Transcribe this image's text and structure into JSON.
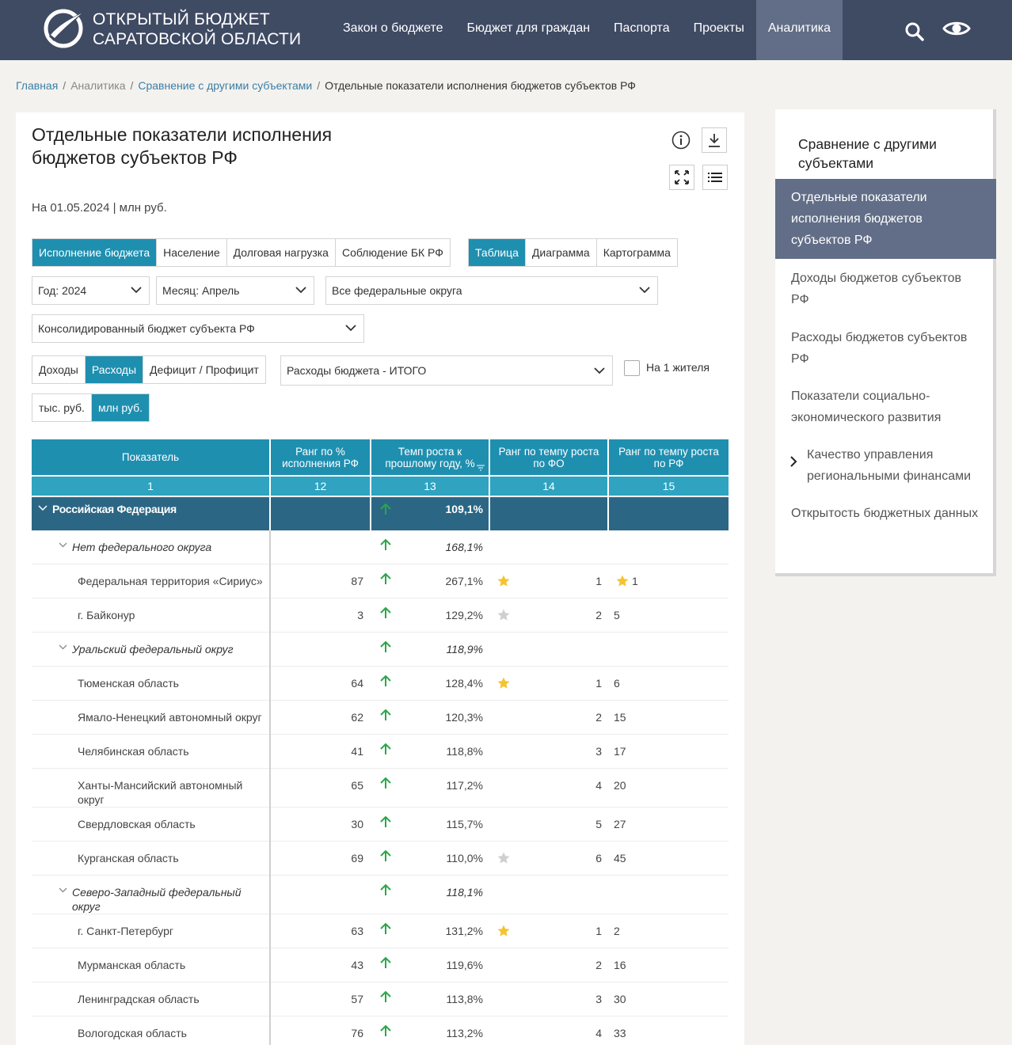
{
  "header": {
    "brand_line1": "ОТКРЫТЫЙ БЮДЖЕТ",
    "brand_line2": "САРАТОВСКОЙ ОБЛАСТИ",
    "nav": [
      "Закон о бюджете",
      "Бюджет для граждан",
      "Паспорта",
      "Проекты",
      "Аналитика"
    ],
    "active_nav": "Аналитика"
  },
  "breadcrumb": {
    "home": "Главная",
    "analytics": "Аналитика",
    "compare": "Сравнение с другими субъектами",
    "current": "Отдельные показатели исполнения бюджетов субъектов РФ"
  },
  "report": {
    "title": "Отдельные показатели исполнения бюджетов субъектов РФ",
    "subtitle": "На 01.05.2024 | млн руб."
  },
  "tabs_data": [
    "Исполнение бюджета",
    "Население",
    "Долговая нагрузка",
    "Соблюдение БК РФ"
  ],
  "tabs_view": [
    "Таблица",
    "Диаграмма",
    "Картограмма"
  ],
  "filters": {
    "year": "Год: 2024",
    "month": "Месяц: Апрель",
    "district": "Все федеральные округа",
    "budget": "Консолидированный бюджет субъекта РФ",
    "indicator": "Расходы бюджета - ИТОГО",
    "per_capita_label": "На 1 жителя"
  },
  "tabs_kind": [
    "Доходы",
    "Расходы",
    "Дефицит / Профицит"
  ],
  "tabs_unit": [
    "тыс. руб.",
    "млн руб."
  ],
  "table": {
    "headers": [
      "Показатель",
      "Ранг по % исполнения РФ",
      "Темп роста к прошлому году, %",
      "Ранг по темпу роста по ФО",
      "Ранг по темпу роста по РФ"
    ],
    "col_numbers": [
      "1",
      "12",
      "13",
      "14",
      "15"
    ],
    "total": {
      "name": "Российская Федерация",
      "growth": "109,1%"
    },
    "rows": [
      {
        "type": "group",
        "name": "Нет федерального округа",
        "growth": "168,1%"
      },
      {
        "type": "item",
        "name": "Федеральная территория «Сириус»",
        "rank": "87",
        "growth": "267,1%",
        "star_fo": "gold",
        "rank_fo": "1",
        "star_rf": "gold",
        "rank_rf": "1"
      },
      {
        "type": "item",
        "name": "г. Байконур",
        "rank": "3",
        "growth": "129,2%",
        "star_fo": "gray",
        "rank_fo": "2",
        "rank_rf": "5"
      },
      {
        "type": "group",
        "name": "Уральский федеральный округ",
        "growth": "118,9%"
      },
      {
        "type": "item",
        "name": "Тюменская область",
        "rank": "64",
        "growth": "128,4%",
        "star_fo": "gold",
        "rank_fo": "1",
        "rank_rf": "6"
      },
      {
        "type": "item",
        "name": "Ямало-Ненецкий автономный округ",
        "rank": "62",
        "growth": "120,3%",
        "rank_fo": "2",
        "rank_rf": "15"
      },
      {
        "type": "item",
        "name": "Челябинская область",
        "rank": "41",
        "growth": "118,8%",
        "rank_fo": "3",
        "rank_rf": "17"
      },
      {
        "type": "item",
        "name": "Ханты-Мансийский автономный округ",
        "rank": "65",
        "growth": "117,2%",
        "rank_fo": "4",
        "rank_rf": "20"
      },
      {
        "type": "item",
        "name": "Свердловская область",
        "rank": "30",
        "growth": "115,7%",
        "rank_fo": "5",
        "rank_rf": "27"
      },
      {
        "type": "item",
        "name": "Курганская область",
        "rank": "69",
        "growth": "110,0%",
        "star_fo": "gray",
        "rank_fo": "6",
        "rank_rf": "45"
      },
      {
        "type": "group",
        "name": "Северо-Западный федеральный округ",
        "growth": "118,1%"
      },
      {
        "type": "item",
        "name": "г. Санкт-Петербург",
        "rank": "63",
        "growth": "131,2%",
        "star_fo": "gold",
        "rank_fo": "1",
        "rank_rf": "2"
      },
      {
        "type": "item",
        "name": "Мурманская область",
        "rank": "43",
        "growth": "119,6%",
        "rank_fo": "2",
        "rank_rf": "16"
      },
      {
        "type": "item",
        "name": "Ленинградская область",
        "rank": "57",
        "growth": "113,8%",
        "rank_fo": "3",
        "rank_rf": "30"
      },
      {
        "type": "item",
        "name": "Вологодская область",
        "rank": "76",
        "growth": "113,2%",
        "rank_fo": "4",
        "rank_rf": "33"
      }
    ]
  },
  "sidebar": {
    "title": "Сравнение с другими субъектами",
    "active": "Отдельные показатели исполнения бюджетов субъектов РФ",
    "items": [
      "Доходы бюджетов субъектов РФ",
      "Расходы бюджетов субъектов РФ",
      "Показатели социально-экономического развития",
      "Качество управления региональными финансами",
      "Открытость бюджетных данных"
    ]
  },
  "colors": {
    "header": "#3f4a63",
    "accent": "#1f8fb0",
    "total_row": "#2b6784",
    "arrow": "#2aa64a",
    "star_gold": "#f4c430",
    "star_gray": "#cfcfcf"
  }
}
